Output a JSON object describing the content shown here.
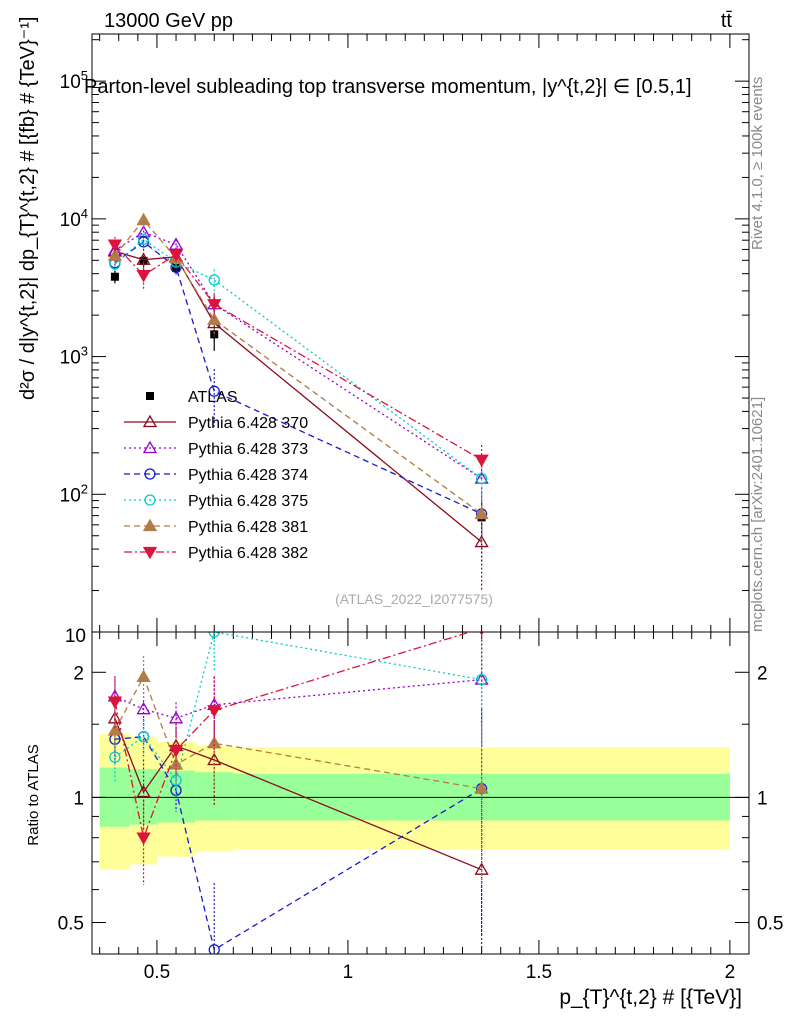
{
  "header": {
    "energy_label": "13000 GeV pp",
    "process_label": "tt̄",
    "rivet_label": "Rivet 4.1.0, ≥ 100k events",
    "mcplots_label": "mcplots.cern.ch [arXiv:2401.10621]",
    "analysis_id": "(ATLAS_2022_I2077575)"
  },
  "colors": {
    "atlas": "#000000",
    "p370": "#8b0a1e",
    "p373": "#9400d3",
    "p374": "#1a1acc",
    "p375": "#00cccc",
    "p381": "#b07d48",
    "p382": "#dc143c",
    "band_inner": "#99ff99",
    "band_outer": "#ffff99"
  },
  "chart_data": [
    {
      "type": "line",
      "panel": "main",
      "title": "Parton-level subleading top transverse momentum, |y^{t,2}| ∈ [0.5,1]",
      "xlabel": "p_{T}^{t,2} # [{TeV}]",
      "ylabel": "d²σ / d|y^{t,2}| dp_{T}^{t,2} # [{fb} # {TeV}⁻¹]",
      "yscale": "log",
      "xlim": [
        0.33,
        2.05
      ],
      "ylim": [
        10,
        220000
      ],
      "x_ticks": [
        "0.5",
        "1",
        "1.5",
        "2"
      ],
      "y_ticks": [
        "10",
        "10^2",
        "10^3",
        "10^4",
        "10^5"
      ],
      "x": [
        0.39,
        0.465,
        0.55,
        0.65,
        1.35
      ],
      "legend_position": "center-left",
      "series": [
        {
          "name": "ATLAS",
          "marker": "filled-square",
          "line": "none",
          "values": [
            3800,
            4950,
            4400,
            1450,
            68
          ],
          "errors": [
            400,
            450,
            450,
            350,
            20
          ]
        },
        {
          "name": "Pythia 6.428 370",
          "marker": "open-triangle-up",
          "line": "solid",
          "values": [
            5800,
            5050,
            5300,
            1750,
            45
          ],
          "errors": [
            800,
            1000,
            700,
            400,
            25
          ]
        },
        {
          "name": "Pythia 6.428 373",
          "marker": "open-triangle-up",
          "line": "dotted",
          "values": [
            5900,
            8000,
            6500,
            2400,
            130
          ],
          "errors": [
            700,
            800,
            600,
            400,
            40
          ]
        },
        {
          "name": "Pythia 6.428 374",
          "marker": "open-circle",
          "line": "dashed",
          "values": [
            4800,
            6800,
            4450,
            560,
            72
          ],
          "errors": [
            600,
            700,
            500,
            250,
            40
          ]
        },
        {
          "name": "Pythia 6.428 375",
          "marker": "open-circle",
          "line": "dotted",
          "values": [
            4700,
            7100,
            4850,
            3600,
            130
          ],
          "errors": [
            600,
            700,
            500,
            700,
            40
          ]
        },
        {
          "name": "Pythia 6.428 381",
          "marker": "filled-triangle-up",
          "line": "dashed",
          "values": [
            5400,
            9800,
            5200,
            1850,
            72
          ],
          "errors": [
            700,
            1200,
            600,
            400,
            30
          ]
        },
        {
          "name": "Pythia 6.428 382",
          "marker": "filled-triangle-down",
          "line": "dashdot",
          "values": [
            6500,
            3900,
            5500,
            2400,
            178
          ],
          "errors": [
            900,
            900,
            700,
            500,
            50
          ]
        }
      ]
    },
    {
      "type": "line",
      "panel": "ratio",
      "ylabel": "Ratio to ATLAS",
      "yscale": "log",
      "ylim": [
        0.42,
        2.5
      ],
      "y_ticks": [
        "0.5",
        "1",
        "2"
      ],
      "x_ticks": [
        "0.5",
        "1",
        "1.5",
        "2"
      ],
      "reference_line": 1.0,
      "bands": {
        "edges": [
          0.35,
          0.43,
          0.5,
          0.6,
          0.7,
          2.0
        ],
        "inner_low": [
          0.85,
          0.86,
          0.87,
          0.88,
          0.88
        ],
        "inner_high": [
          1.18,
          1.17,
          1.16,
          1.15,
          1.14
        ],
        "outer_low": [
          0.67,
          0.69,
          0.72,
          0.74,
          0.75
        ],
        "outer_high": [
          1.42,
          1.4,
          1.36,
          1.33,
          1.32
        ]
      },
      "x": [
        0.39,
        0.465,
        0.55,
        0.65,
        1.35
      ],
      "series": [
        {
          "name": "Pythia 6.428 370",
          "values": [
            1.55,
            1.03,
            1.33,
            1.23,
            0.67
          ]
        },
        {
          "name": "Pythia 6.428 373",
          "values": [
            1.75,
            1.63,
            1.55,
            1.67,
            1.92
          ]
        },
        {
          "name": "Pythia 6.428 374",
          "values": [
            1.38,
            1.4,
            1.04,
            0.43,
            1.05
          ]
        },
        {
          "name": "Pythia 6.428 375",
          "values": [
            1.25,
            1.4,
            1.1,
            2.5,
            1.92
          ]
        },
        {
          "name": "Pythia 6.428 381",
          "values": [
            1.45,
            1.95,
            1.2,
            1.35,
            1.05
          ]
        },
        {
          "name": "Pythia 6.428 382",
          "values": [
            1.7,
            0.8,
            1.3,
            1.62,
            2.55
          ]
        }
      ]
    }
  ]
}
